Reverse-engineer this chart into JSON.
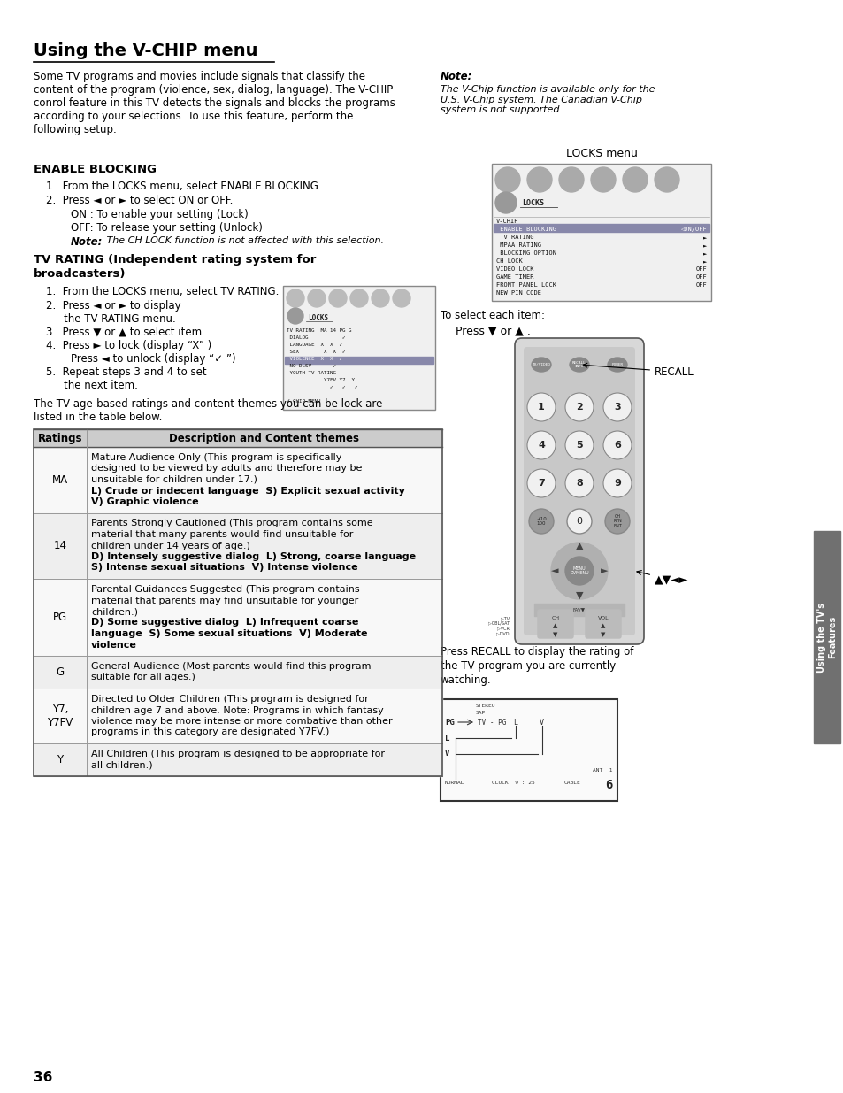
{
  "title": "Using the V-CHIP menu",
  "bg_color": "#ffffff",
  "text_color": "#000000",
  "page_number": "36",
  "sidebar_color": "#707070",
  "sidebar_text": "Using the TV's\nFeatures"
}
